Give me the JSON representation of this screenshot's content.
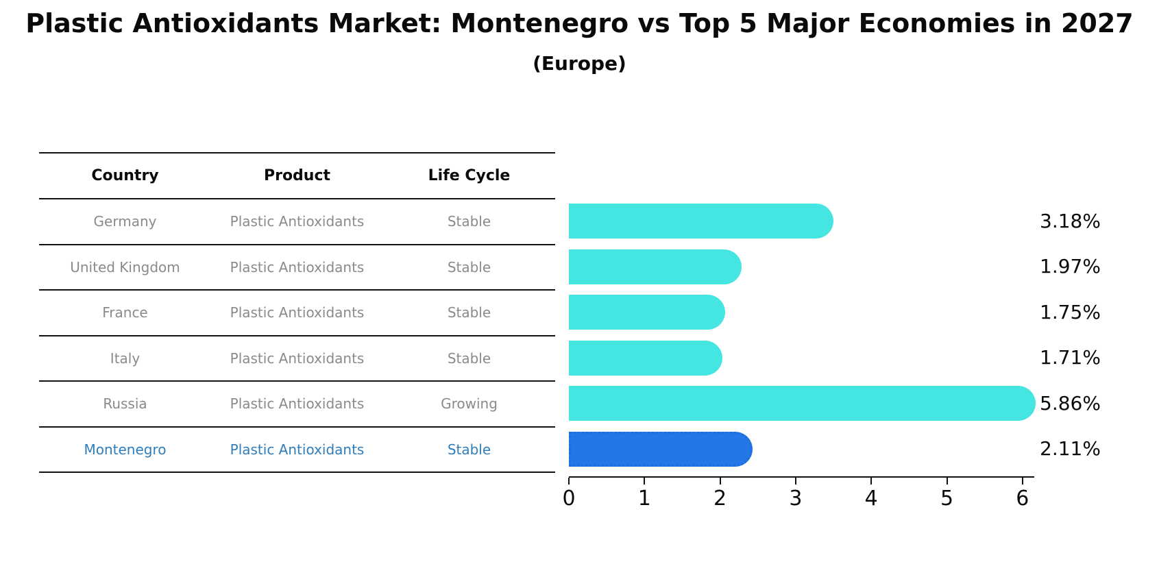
{
  "title": "Plastic Antioxidants Market: Montenegro vs Top 5 Major Economies in 2027",
  "subtitle": "(Europe)",
  "table": {
    "headers": [
      "Country",
      "Product",
      "Life Cycle"
    ],
    "rows": [
      {
        "country": "Germany",
        "product": "Plastic Antioxidants",
        "life_cycle": "Stable",
        "highlight": false
      },
      {
        "country": "United Kingdom",
        "product": "Plastic Antioxidants",
        "life_cycle": "Stable",
        "highlight": false
      },
      {
        "country": "France",
        "product": "Plastic Antioxidants",
        "life_cycle": "Stable",
        "highlight": false
      },
      {
        "country": "Italy",
        "product": "Plastic Antioxidants",
        "life_cycle": "Stable",
        "highlight": false
      },
      {
        "country": "Russia",
        "product": "Plastic Antioxidants",
        "life_cycle": "Growing",
        "highlight": false
      },
      {
        "country": "Montenegro",
        "product": "Plastic Antioxidants",
        "life_cycle": "Stable",
        "highlight": true
      }
    ]
  },
  "chart_data": {
    "type": "bar",
    "orientation": "horizontal",
    "title": "Plastic Antioxidants Market: Montenegro vs Top 5 Major Economies in 2027 (Europe)",
    "categories": [
      "Germany",
      "United Kingdom",
      "France",
      "Italy",
      "Russia",
      "Montenegro"
    ],
    "values": [
      3.18,
      1.97,
      1.75,
      1.71,
      5.86,
      2.11
    ],
    "value_labels": [
      "3.18%",
      "1.97%",
      "1.75%",
      "1.71%",
      "5.86%",
      "2.11%"
    ],
    "unit": "%",
    "xlim": [
      0,
      6
    ],
    "x_ticks": [
      "0",
      "1",
      "2",
      "3",
      "4",
      "5",
      "6"
    ],
    "grid": false,
    "legend": "none",
    "highlight_index": 5,
    "colors": {
      "bar": "#45E6E1",
      "highlight_bar": "#2577E8",
      "highlight_bar_border": "#1a6fd8",
      "highlight_text": "#2e7ebc",
      "table_text": "#8a8a8a",
      "axis": "#111111"
    }
  }
}
